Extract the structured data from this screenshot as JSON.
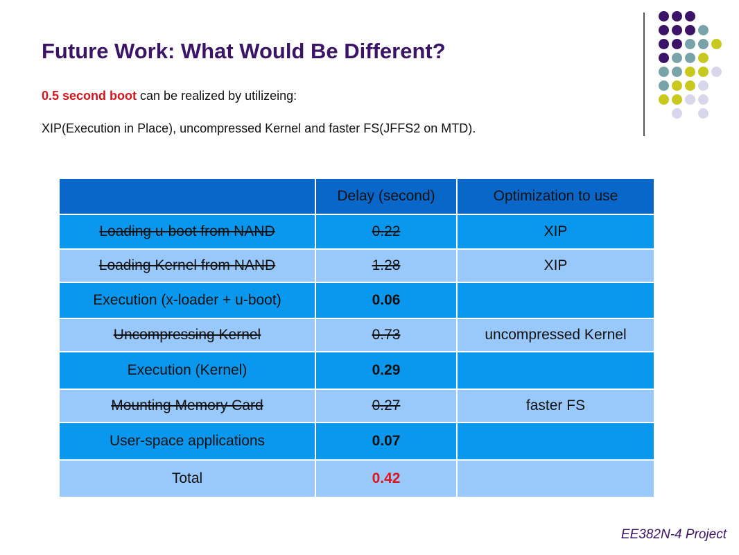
{
  "slide": {
    "title": "Future Work: What Would Be Different?",
    "intro_highlight": "0.5 second boot",
    "intro_rest": " can be realized by utilizeing:",
    "detail": "XIP(Execution in Place), uncompressed Kernel and faster FS(JFFS2 on MTD).",
    "footer": "EE382N-4 Project"
  },
  "colors": {
    "title": "#3b1468",
    "highlight": "#d2141c",
    "header_row": "#0867c8",
    "dark_row": "#0a98ee",
    "light_row": "#99c9fb",
    "dot_purple": "#3b1468",
    "dot_teal": "#78a3a8",
    "dot_yellow": "#c9c81f",
    "dot_lavender": "#d8d6ea"
  },
  "table": {
    "headers": [
      "",
      "Delay (second)",
      "Optimization to use"
    ],
    "rows": [
      {
        "task": "Loading u-boot from NAND",
        "delay": "0.22",
        "optimization": "XIP",
        "struck": true
      },
      {
        "task": "Loading Kernel from NAND",
        "delay": "1.28",
        "optimization": "XIP",
        "struck": true
      },
      {
        "task": "Execution (x-loader + u-boot)",
        "delay": "0.06",
        "optimization": "",
        "struck": false
      },
      {
        "task": "Uncompressing Kernel",
        "delay": "0.73",
        "optimization": "uncompressed Kernel",
        "struck": true
      },
      {
        "task": "Execution (Kernel)",
        "delay": "0.29",
        "optimization": "",
        "struck": false
      },
      {
        "task": "Mounting Memory Card",
        "delay": "0.27",
        "optimization": "faster FS",
        "struck": true
      },
      {
        "task": "User-space applications",
        "delay": "0.07",
        "optimization": "",
        "struck": false
      },
      {
        "task": "Total",
        "delay": "0.42",
        "optimization": "",
        "struck": false
      }
    ]
  }
}
